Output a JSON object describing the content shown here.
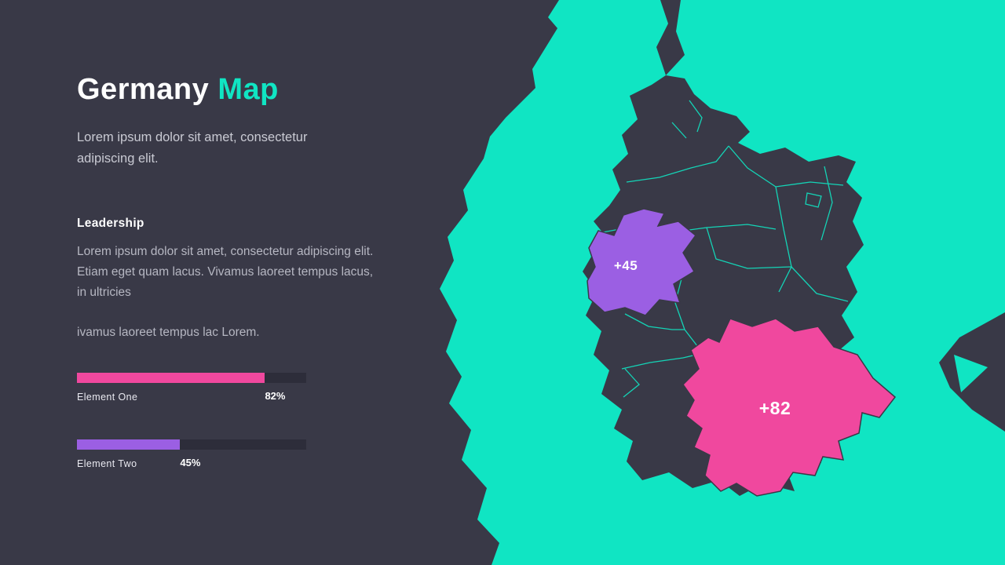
{
  "theme": {
    "background": "#393947",
    "teal": "#10e5c3",
    "pink": "#f0489e",
    "purple": "#9b5fe3",
    "country_fill": "#393947",
    "track": "#2d2d3a",
    "text_white": "#ffffff",
    "text_muted": "#c9cad3"
  },
  "slide": {
    "title_primary": "Germany",
    "title_accent": "Map",
    "subtitle": "Lorem ipsum dolor sit amet, consectetur adipiscing elit.",
    "section_heading": "Leadership",
    "section_body": "Lorem ipsum dolor sit amet, consectetur adipiscing elit. Etiam eget quam lacus. Vivamus laoreet tempus lacus, in ultricies",
    "section_body_2": "ivamus laoreet tempus lac Lorem.",
    "bars": [
      {
        "label": "Element  One",
        "percent": 82,
        "percent_label": "82%",
        "color": "#f0489e"
      },
      {
        "label": "Element  Two",
        "percent": 45,
        "percent_label": "45%",
        "color": "#9b5fe3"
      }
    ]
  },
  "map": {
    "region_labels": [
      {
        "text": "+45",
        "region": "north-rhine-westphalia"
      },
      {
        "text": "+82",
        "region": "bavaria"
      }
    ]
  }
}
